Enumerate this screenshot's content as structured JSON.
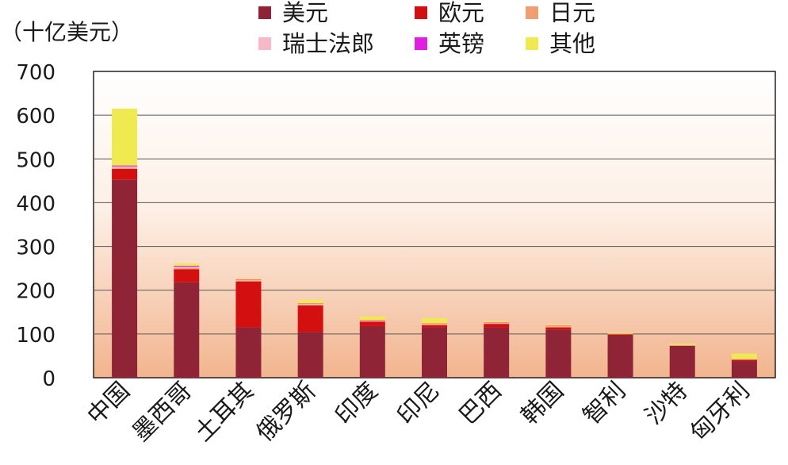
{
  "chart_data": {
    "type": "bar",
    "stacked": true,
    "ylabel": "（十亿美元）",
    "ylim": [
      0,
      700
    ],
    "yticks": [
      0,
      100,
      200,
      300,
      400,
      500,
      600,
      700
    ],
    "grid": true,
    "legend_position": "top",
    "categories": [
      "中国",
      "墨西哥",
      "土耳其",
      "俄罗斯",
      "印度",
      "印尼",
      "巴西",
      "韩国",
      "智利",
      "沙特",
      "匈牙利"
    ],
    "series": [
      {
        "name": "美元",
        "color": "#8e2436",
        "values": [
          452,
          218,
          115,
          105,
          118,
          115,
          115,
          110,
          97,
          73,
          38
        ]
      },
      {
        "name": "欧元",
        "color": "#d40f0f",
        "values": [
          25,
          30,
          105,
          60,
          10,
          5,
          8,
          5,
          2,
          0,
          3
        ]
      },
      {
        "name": "日元",
        "color": "#f0a070",
        "values": [
          3,
          3,
          2,
          2,
          2,
          2,
          1,
          2,
          1,
          1,
          1
        ]
      },
      {
        "name": "瑞士法郎",
        "color": "#f8b8c8",
        "values": [
          3,
          3,
          2,
          2,
          1,
          1,
          1,
          1,
          1,
          1,
          1
        ]
      },
      {
        "name": "英镑",
        "color": "#e020e0",
        "values": [
          2,
          2,
          1,
          1,
          1,
          1,
          1,
          1,
          0,
          0,
          0
        ]
      },
      {
        "name": "其他",
        "color": "#eeea50",
        "values": [
          130,
          5,
          3,
          8,
          8,
          12,
          3,
          3,
          2,
          3,
          12
        ]
      }
    ]
  }
}
